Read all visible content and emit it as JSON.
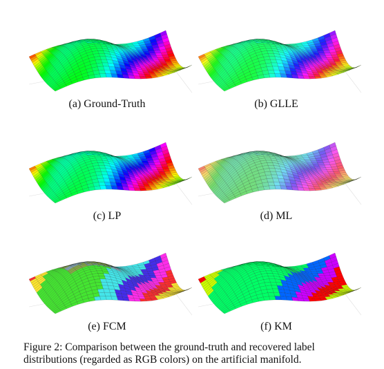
{
  "panels": [
    {
      "caption": "(a) Ground-Truth",
      "coloring": "ground-truth"
    },
    {
      "caption": "(b) GLLE",
      "coloring": "glle"
    },
    {
      "caption": "(c) LP",
      "coloring": "lp"
    },
    {
      "caption": "(d) ML",
      "coloring": "ml"
    },
    {
      "caption": "(e) FCM",
      "coloring": "fcm"
    },
    {
      "caption": "(f) KM",
      "coloring": "km"
    }
  ],
  "figure_caption": {
    "line1": "Figure 2: Comparison between the ground-truth and recovered label",
    "line2": "distributions (regarded as RGB colors) on the artificial manifold."
  }
}
